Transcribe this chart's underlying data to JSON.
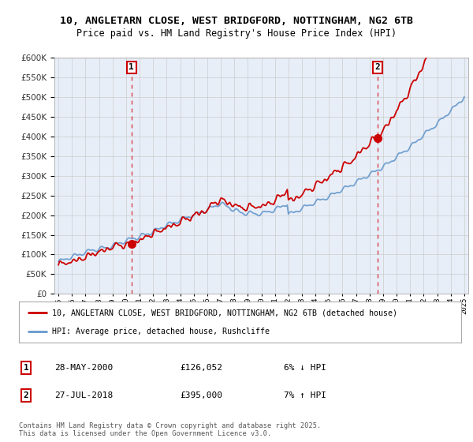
{
  "title_line1": "10, ANGLETARN CLOSE, WEST BRIDGFORD, NOTTINGHAM, NG2 6TB",
  "title_line2": "Price paid vs. HM Land Registry's House Price Index (HPI)",
  "legend_line1": "10, ANGLETARN CLOSE, WEST BRIDGFORD, NOTTINGHAM, NG2 6TB (detached house)",
  "legend_line2": "HPI: Average price, detached house, Rushcliffe",
  "annotation1_date": "28-MAY-2000",
  "annotation1_price": "£126,052",
  "annotation1_hpi": "6% ↓ HPI",
  "annotation2_date": "27-JUL-2018",
  "annotation2_price": "£395,000",
  "annotation2_hpi": "7% ↑ HPI",
  "footer": "Contains HM Land Registry data © Crown copyright and database right 2025.\nThis data is licensed under the Open Government Licence v3.0.",
  "ylim": [
    0,
    600000
  ],
  "color_property": "#cc0000",
  "color_hpi": "#6699cc",
  "color_vline": "#cc0000",
  "background_color": "#ffffff",
  "chart_bg_color": "#e8eef8",
  "grid_color": "#cccccc",
  "sale1_year": 2000.4,
  "sale1_price": 126052,
  "sale2_year": 2018.58,
  "sale2_price": 395000,
  "xmin": 1995,
  "xmax": 2025
}
